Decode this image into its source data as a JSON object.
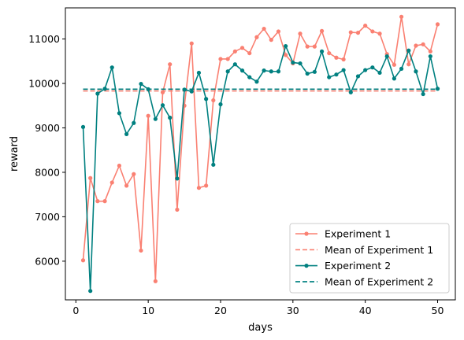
{
  "chart_data": {
    "type": "line",
    "xlabel": "days",
    "ylabel": "reward",
    "xlim": [
      -1.45,
      52.45
    ],
    "ylim": [
      5130,
      11700
    ],
    "xticks": [
      0,
      10,
      20,
      30,
      40,
      50
    ],
    "yticks": [
      6000,
      7000,
      8000,
      9000,
      10000,
      11000
    ],
    "grid": false,
    "legend_position": "lower-right",
    "x": [
      1,
      2,
      3,
      4,
      5,
      6,
      7,
      8,
      9,
      10,
      11,
      12,
      13,
      14,
      15,
      16,
      17,
      18,
      19,
      20,
      21,
      22,
      23,
      24,
      25,
      26,
      27,
      28,
      29,
      30,
      31,
      32,
      33,
      34,
      35,
      36,
      37,
      38,
      39,
      40,
      41,
      42,
      43,
      44,
      45,
      46,
      47,
      48,
      49,
      50
    ],
    "series": [
      {
        "name": "Experiment 1",
        "color": "#fa8072",
        "style": "solid-markers",
        "values": [
          6020,
          7870,
          7350,
          7350,
          7770,
          8150,
          7700,
          7960,
          6240,
          9270,
          5550,
          9800,
          10430,
          7160,
          9500,
          10900,
          7650,
          7700,
          9620,
          10550,
          10550,
          10720,
          10800,
          10680,
          11040,
          11230,
          10980,
          11170,
          10640,
          10450,
          11120,
          10830,
          10830,
          11180,
          10680,
          10580,
          10540,
          11150,
          11140,
          11300,
          11170,
          11120,
          10660,
          10420,
          11500,
          10430,
          10850,
          10880,
          10720,
          11330
        ]
      },
      {
        "name": "Mean of Experiment 1",
        "color": "#fa8072",
        "style": "dashed",
        "constant": 9830
      },
      {
        "name": "Experiment 2",
        "color": "#008080",
        "style": "solid-markers",
        "values": [
          9020,
          5330,
          9770,
          9880,
          10360,
          9330,
          8860,
          9110,
          9990,
          9870,
          9200,
          9510,
          9230,
          7860,
          9860,
          9820,
          10240,
          9650,
          8170,
          9530,
          10270,
          10430,
          10290,
          10140,
          10040,
          10290,
          10270,
          10270,
          10840,
          10470,
          10450,
          10220,
          10260,
          10720,
          10140,
          10200,
          10300,
          9800,
          10160,
          10300,
          10360,
          10240,
          10610,
          10110,
          10330,
          10740,
          10270,
          9760,
          10610,
          9880
        ]
      },
      {
        "name": "Mean of Experiment 2",
        "color": "#008080",
        "style": "dashed",
        "constant": 9870
      }
    ]
  }
}
